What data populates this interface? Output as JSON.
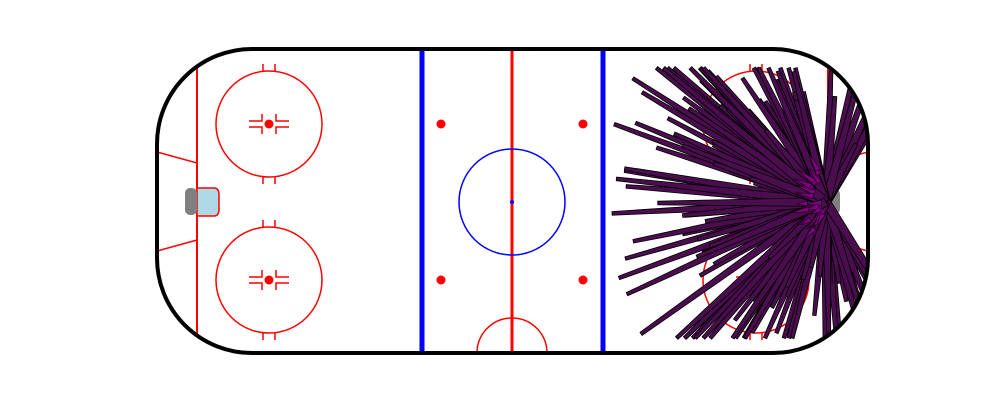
{
  "rink": {
    "colors": {
      "background": "#ffffff",
      "boards": "#000000",
      "red_line": "#ff0000",
      "blue_line": "#0000ff",
      "faceoff_circle": "#ff0000",
      "center_circle": "#0000ff",
      "net": "#808080",
      "crease": "#add8e6"
    }
  },
  "shots": {
    "fill": "#4a0e4e",
    "outline": "#000000",
    "tip_fill": "#800080",
    "count": 150
  }
}
